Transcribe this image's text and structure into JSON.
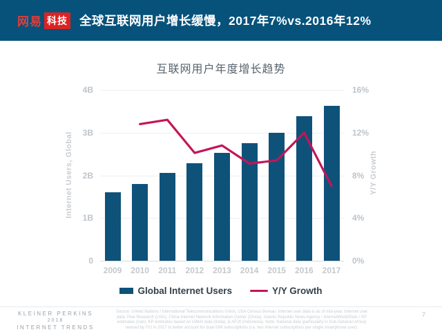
{
  "header": {
    "brand_name": "网易",
    "brand_badge": "科技",
    "title": "全球互联网用户增长缓慢，2017年7%vs.2016年12%"
  },
  "chart_data": {
    "type": "bar+line",
    "title": "互联网用户年度增长趋势",
    "categories": [
      "2009",
      "2010",
      "2011",
      "2012",
      "2013",
      "2014",
      "2015",
      "2016",
      "2017"
    ],
    "series": [
      {
        "name": "Global Internet Users",
        "type": "bar",
        "axis": "left",
        "unit": "billions",
        "values": [
          1.6,
          1.8,
          2.05,
          2.28,
          2.52,
          2.76,
          3.0,
          3.38,
          3.62
        ]
      },
      {
        "name": "Y/Y Growth",
        "type": "line",
        "axis": "right",
        "unit": "percent",
        "values": [
          null,
          12.8,
          13.2,
          10.1,
          10.8,
          9.1,
          9.4,
          12,
          7
        ]
      }
    ],
    "left_axis": {
      "label": "Internet Users, Global",
      "min": 0,
      "max": 4,
      "ticks": [
        "4B",
        "3B",
        "2B",
        "1B",
        "0"
      ]
    },
    "right_axis": {
      "label": "Y/Y Growth",
      "min": 0,
      "max": 16,
      "ticks": [
        "16%",
        "12%",
        "8%",
        "4%",
        "0%"
      ]
    },
    "grid": true,
    "legend_position": "bottom"
  },
  "legend": {
    "bar_label": "Global Internet Users",
    "line_label": "Y/Y Growth"
  },
  "footer": {
    "kp_lines": [
      "KLEINER PERKINS",
      "2018",
      "INTERNET TRENDS"
    ],
    "source_lines": [
      "Source: United Nations / International Telecommunications Union, USA Census Bureau. Internet user data is as of mid-year. Internet user",
      "data: Pew Research (USA), China Internet Network Information Center (China), Islamic Republic News Agency / InternetWorldStats / KP",
      "estimates (Iran), KP estimates based on IAMAI data (India), & APJII (Indonesia).  Note: National data (particularly in Sub-Saharan Africa)",
      "revised by ITU in 2017 to better account for dual-SIM subscriptions (i.e. two Internet subscriptions per single smartphone user)."
    ],
    "page_number": "7"
  },
  "colors": {
    "header_bg": "#07527B",
    "brand_red": "#DD2222",
    "bar": "#0E527A",
    "line": "#C41557",
    "grid": "#ECEEF0",
    "axis_text": "#BDC4CA"
  }
}
